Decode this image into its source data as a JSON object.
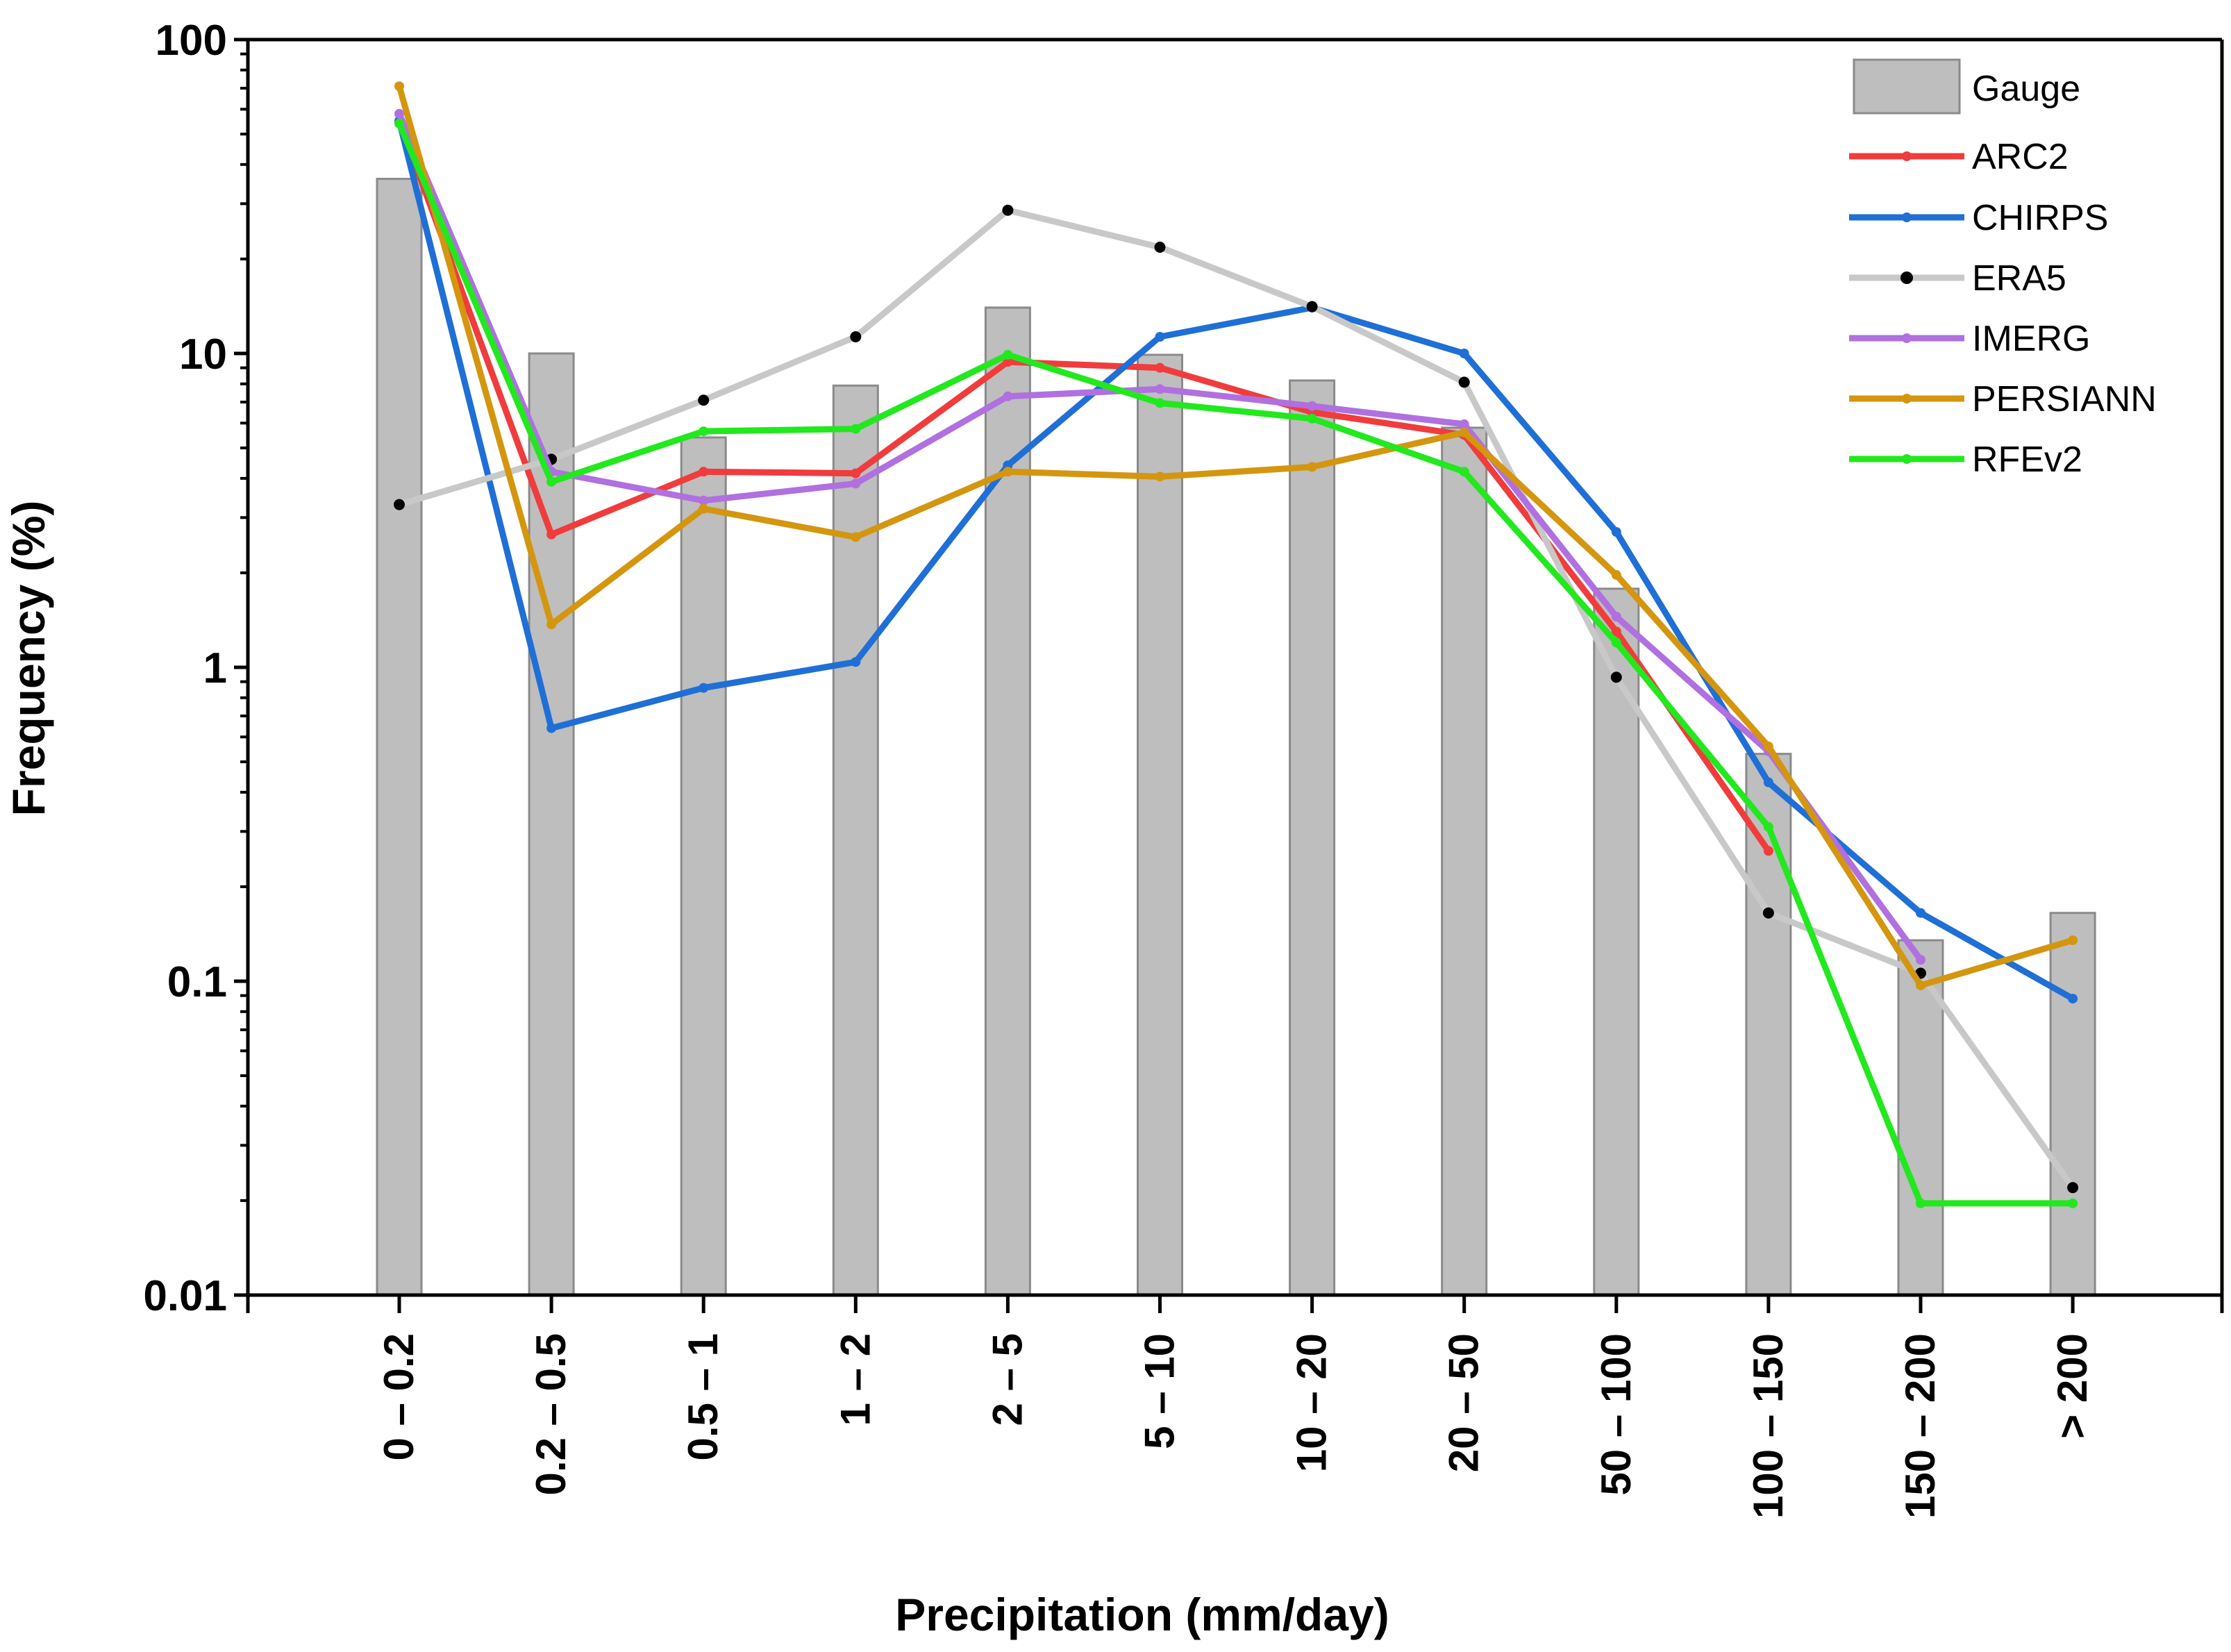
{
  "chart_data": {
    "type": "bar+line",
    "title": "",
    "xlabel": "Precipitation (mm/day)",
    "ylabel": "Frequency (%)",
    "yscale": "log",
    "ylim": [
      0.01,
      100
    ],
    "yticks": [
      0.01,
      0.1,
      1,
      10,
      100
    ],
    "ytick_labels": [
      "0.01",
      "0.1",
      "1",
      "10",
      "100"
    ],
    "categories": [
      "0 – 0.2",
      "0.2 – 0.5",
      "0.5 – 1",
      "1 – 2",
      "2 – 5",
      "5 – 10",
      "10 – 20",
      "20 – 50",
      "50 – 100",
      "100 – 150",
      "150 – 200",
      "> 200"
    ],
    "legend_position": "top-right",
    "bars": {
      "name": "Gauge",
      "color": "#bebebe",
      "values": [
        36,
        10,
        5.4,
        7.9,
        14,
        9.9,
        8.2,
        5.8,
        1.78,
        0.53,
        0.135,
        0.165
      ]
    },
    "series": [
      {
        "name": "ARC2",
        "color": "#f03c3c",
        "marker_color": "#f03c3c",
        "values": [
          55,
          2.65,
          4.2,
          4.15,
          9.4,
          9.0,
          6.5,
          5.5,
          1.3,
          0.26,
          null,
          null
        ]
      },
      {
        "name": "CHIRPS",
        "color": "#1f6fd6",
        "marker_color": "#1f6fd6",
        "values": [
          55,
          0.64,
          0.86,
          1.04,
          4.4,
          11.3,
          14,
          10,
          2.7,
          0.43,
          0.165,
          0.088
        ]
      },
      {
        "name": "ERA5",
        "color": "#c8c8c8",
        "marker_color": "#000000",
        "values": [
          3.3,
          4.6,
          7.1,
          11.3,
          28.6,
          21.8,
          14.1,
          8.1,
          0.93,
          0.165,
          0.106,
          0.022
        ]
      },
      {
        "name": "IMERG",
        "color": "#b070e0",
        "marker_color": "#b070e0",
        "values": [
          58,
          4.2,
          3.4,
          3.85,
          7.3,
          7.7,
          6.8,
          5.95,
          1.45,
          0.54,
          0.117,
          null
        ]
      },
      {
        "name": "PERSIANN",
        "color": "#d4960f",
        "marker_color": "#d4960f",
        "values": [
          71,
          1.37,
          3.2,
          2.6,
          4.2,
          4.05,
          4.35,
          5.6,
          1.97,
          0.56,
          0.097,
          0.135
        ]
      },
      {
        "name": "RFEv2",
        "color": "#22e81e",
        "marker_color": "#22e81e",
        "values": [
          54,
          3.9,
          5.65,
          5.75,
          9.9,
          6.95,
          6.2,
          4.2,
          1.2,
          0.31,
          0.0196,
          0.0196
        ]
      }
    ]
  }
}
